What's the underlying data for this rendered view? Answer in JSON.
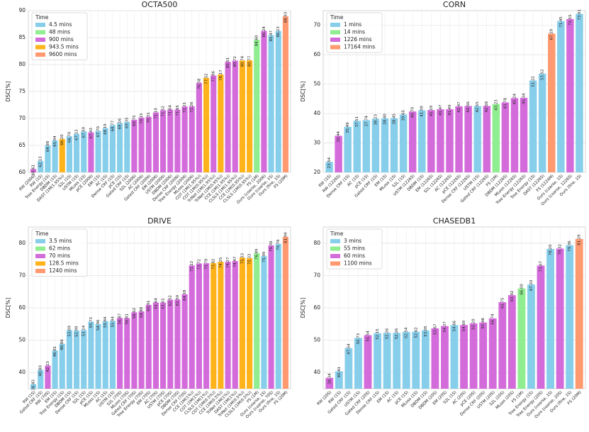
{
  "chart_data": [
    {
      "type": "bar",
      "title": "OCTA500",
      "y_label": "DSC[%]",
      "ylim": [
        60,
        90
      ],
      "yticks": [
        60,
        65,
        70,
        75,
        80,
        85,
        90
      ],
      "grid": true,
      "legend_position": "upper left",
      "legend_title": "Time",
      "legend": [
        {
          "name": "4.5 mins",
          "color": "#87ceeb"
        },
        {
          "name": "48 mins",
          "color": "#90ee90"
        },
        {
          "name": "900 mins",
          "color": "#d46bdb"
        },
        {
          "name": "943.5 mins",
          "color": "#ffb31a"
        },
        {
          "name": "9600 mins",
          "color": "#ff9970"
        }
      ],
      "categories": [
        "RW (2006)",
        "RW (1S)",
        "Tree Energy (1S)",
        "DBDM (1S)",
        "DAST (1M(1.95%))",
        "S2L (1S)",
        "USTM (1S)",
        "MLoss (1S)",
        "pCE (2006)",
        "EM (1S)",
        "AC (1S)",
        "Dense CRF (1S)",
        "pCE (1S)",
        "Gated CRF (1S)",
        "S2L (2006)",
        "AC (2006)",
        "Gated CRF (2006)",
        "EM (2006)",
        "USTM (2006)",
        "DBDM (2006)",
        "Dense CRF (2006)",
        "Tree Energy (2006)",
        "MLoss (2006)",
        "COT (1M(1.95%))",
        "COT (1M(0.95%))",
        "TriNet (1M(1.95%))",
        "TriNet (1M(0.95%))",
        "CCE (1M(1.95%))",
        "CLSLS (1M(1.95%))",
        "CCE (1M(0.95%))",
        "CLSLS (1M(0.95%))",
        "FS (1M)",
        "Ours (coarse, 2006)",
        "Ours (coarse, 1S)",
        "Ours (fine, 1S)",
        "FS (20M)"
      ],
      "values": [
        60.61,
        62.13,
        64.98,
        65.94,
        66.2,
        66.7,
        67.13,
        67.59,
        67.43,
        67.7,
        68.19,
        68.77,
        69.16,
        69.35,
        69.75,
        70.15,
        70.31,
        71.1,
        71.52,
        71.64,
        71.65,
        72.21,
        72.26,
        76.58,
        77.52,
        77.96,
        78.17,
        80.51,
        80.72,
        80.74,
        80.77,
        84.6,
        86.24,
        85.47,
        86.23,
        88.93
      ],
      "value_labels": [
        "60.61",
        "62.13",
        "64.98",
        "65.94",
        "66.20",
        "66.70",
        "67.13",
        "67.59",
        "67.43",
        "67.70",
        "68.19",
        "68.77",
        "69.16",
        "69.35",
        "69.75",
        "70.15",
        "70.31",
        "71.10",
        "71.52",
        "71.64",
        "71.65",
        "72.21",
        "72.26",
        "76.58",
        "77.52",
        "77.96",
        "78.17",
        "80.51",
        "80.72",
        "80.74",
        "80.77",
        "84.60",
        "86.24",
        "85.47",
        "86.23",
        "88.93"
      ],
      "colors": [
        "#d46bdb",
        "#87ceeb",
        "#87ceeb",
        "#87ceeb",
        "#ffb31a",
        "#87ceeb",
        "#87ceeb",
        "#87ceeb",
        "#d46bdb",
        "#87ceeb",
        "#87ceeb",
        "#87ceeb",
        "#87ceeb",
        "#87ceeb",
        "#d46bdb",
        "#d46bdb",
        "#d46bdb",
        "#d46bdb",
        "#d46bdb",
        "#d46bdb",
        "#d46bdb",
        "#d46bdb",
        "#d46bdb",
        "#d46bdb",
        "#ffb31a",
        "#d46bdb",
        "#ffb31a",
        "#d46bdb",
        "#d46bdb",
        "#ffb31a",
        "#ffb31a",
        "#90ee90",
        "#d46bdb",
        "#87ceeb",
        "#87ceeb",
        "#ff9970"
      ]
    },
    {
      "type": "bar",
      "title": "CORN",
      "y_label": "DSC[%]",
      "ylim": [
        20,
        75
      ],
      "yticks": [
        20,
        30,
        40,
        50,
        60,
        70
      ],
      "grid": true,
      "legend_position": "upper left",
      "legend_title": "Time",
      "legend": [
        {
          "name": "1 mins",
          "color": "#87ceeb"
        },
        {
          "name": "14 mins",
          "color": "#90ee90"
        },
        {
          "name": "1226 mins",
          "color": "#d46bdb"
        },
        {
          "name": "17164 mins",
          "color": "#ff9970"
        }
      ],
      "categories": [
        "RW (1S)",
        "RW (1226S)",
        "Dense CRF (1S)",
        "AC (1S)",
        "pCE (1S)",
        "Gated CRF (1S)",
        "EM (1S)",
        "MLoss (1S)",
        "S2L (1S)",
        "USTM (1226S)",
        "DBDM (1S)",
        "EM (1226S)",
        "S2L (1226S)",
        "AC (1226S)",
        "pCE (1226S)",
        "Dense CRF (1226S)",
        "USTM (1S)",
        "Gated CRF (1226S)",
        "FS (1M)",
        "DBDM (1226S)",
        "MLoss (1226S)",
        "Tree Energy (1226S)",
        "Tree Energy (1S)",
        "DAST (1226S)",
        "FS (1224M)",
        "Ours (coarse, 1S)",
        "Ours (coarse, 1226S)",
        "Ours (fine, 1S)"
      ],
      "values": [
        23.54,
        32.44,
        35.49,
        37.51,
        37.74,
        38.23,
        38.4,
        38.45,
        39.65,
        40.7,
        41.09,
        41.19,
        41.47,
        41.49,
        42.47,
        42.56,
        42.55,
        42.58,
        43.23,
        43.78,
        45.24,
        45.34,
        51.22,
        53.52,
        67.19,
        71.45,
        72.15,
        73.91
      ],
      "value_labels": [
        "23.54",
        "32.44",
        "35.49",
        "37.51",
        "37.74",
        "38.23",
        "38.40",
        "38.45",
        "39.65",
        "40.70",
        "41.09",
        "41.19",
        "41.47",
        "41.49",
        "42.47",
        "42.56",
        "42.55",
        "42.58",
        "43.23",
        "43.78",
        "45.24",
        "45.34",
        "51.22",
        "53.52",
        "67.19",
        "71.45",
        "72.15",
        "73.91"
      ],
      "colors": [
        "#87ceeb",
        "#d46bdb",
        "#87ceeb",
        "#87ceeb",
        "#87ceeb",
        "#87ceeb",
        "#87ceeb",
        "#87ceeb",
        "#87ceeb",
        "#d46bdb",
        "#87ceeb",
        "#d46bdb",
        "#d46bdb",
        "#d46bdb",
        "#d46bdb",
        "#d46bdb",
        "#87ceeb",
        "#d46bdb",
        "#90ee90",
        "#d46bdb",
        "#d46bdb",
        "#d46bdb",
        "#87ceeb",
        "#87ceeb",
        "#ff9970",
        "#87ceeb",
        "#d46bdb",
        "#87ceeb"
      ]
    },
    {
      "type": "bar",
      "title": "DRIVE",
      "y_label": "DSC[%]",
      "ylim": [
        35,
        85
      ],
      "yticks": [
        40,
        50,
        60,
        70,
        80
      ],
      "grid": true,
      "legend_position": "upper left",
      "legend_title": "Time",
      "legend": [
        {
          "name": "3.5 mins",
          "color": "#87ceeb"
        },
        {
          "name": "62 mins",
          "color": "#90ee90"
        },
        {
          "name": "70 mins",
          "color": "#d46bdb"
        },
        {
          "name": "128.5 mins",
          "color": "#ffb31a"
        },
        {
          "name": "1240 mins",
          "color": "#ff9970"
        }
      ],
      "categories": [
        "RW (1S)",
        "Gated CRF (1S)",
        "RW (70S)",
        "EM (1S)",
        "Tree Energy (1S)",
        "DBDM (1S)",
        "Dense CRF (1S)",
        "S2L (1S)",
        "pCE (1S)",
        "MLoss (1S)",
        "AC (1S)",
        "USTM (1S)",
        "S2L (70S)",
        "MLoss (70S)",
        "Gated CRF (70S)",
        "Tree Energy (70S)",
        "EM (70S)",
        "AC (70S)",
        "USTM (70S)",
        "pCE (70S)",
        "DBDM (70S)",
        "Dense CRF (70S)",
        "CCE (1M(1%))",
        "COT (1M(1%))",
        "CLSLS (1M(1%))",
        "COT (1M(0.5%))",
        "CCE (1M(0.5%))",
        "TriNet (1M(1%))",
        "DAST (1M(1%))",
        "TriNet (1M(0.5%))",
        "CLSLS (1M(0.5%))",
        "FS (1M)",
        "Ours (coarse, 1S)",
        "Ours (coarse, 70S)",
        "Ours (fine, 1S)",
        "FS (20M)"
      ],
      "values": [
        36.43,
        40.8,
        42.13,
        46.81,
        48.86,
        53.09,
        52.99,
        53.14,
        55.73,
        54.96,
        55.84,
        55.94,
        56.87,
        56.81,
        58.62,
        58.88,
        60.91,
        61.64,
        61.61,
        62.52,
        62.59,
        64.18,
        73.12,
        73.72,
        73.79,
        73.82,
        74.25,
        74.27,
        74.47,
        75.53,
        75.33,
        76.89,
        75.99,
        79.3,
        79.76,
        81.94
      ],
      "value_labels": [
        "36.43",
        "40.80",
        "42.13",
        "46.81",
        "48.86",
        "53.09",
        "52.99",
        "53.14",
        "55.73",
        "54.96",
        "55.84",
        "55.94",
        "56.87",
        "56.81",
        "58.62",
        "58.88",
        "60.91",
        "61.64",
        "61.61",
        "62.52",
        "62.59",
        "64.18",
        "73.12",
        "73.72",
        "73.79",
        "73.82",
        "74.25",
        "74.27",
        "74.47",
        "75.53",
        "75.33",
        "76.89",
        "75.99",
        "79.30",
        "79.76",
        "81.94"
      ],
      "colors": [
        "#87ceeb",
        "#87ceeb",
        "#d46bdb",
        "#87ceeb",
        "#87ceeb",
        "#87ceeb",
        "#87ceeb",
        "#87ceeb",
        "#87ceeb",
        "#87ceeb",
        "#87ceeb",
        "#87ceeb",
        "#d46bdb",
        "#d46bdb",
        "#d46bdb",
        "#d46bdb",
        "#d46bdb",
        "#d46bdb",
        "#d46bdb",
        "#d46bdb",
        "#d46bdb",
        "#d46bdb",
        "#d46bdb",
        "#d46bdb",
        "#d46bdb",
        "#ffb31a",
        "#ffb31a",
        "#d46bdb",
        "#d46bdb",
        "#ffb31a",
        "#ffb31a",
        "#90ee90",
        "#87ceeb",
        "#d46bdb",
        "#87ceeb",
        "#ff9970"
      ]
    },
    {
      "type": "bar",
      "title": "CHASEDB1",
      "y_label": "DSC[%]",
      "ylim": [
        35,
        85
      ],
      "yticks": [
        40,
        50,
        60,
        70,
        80
      ],
      "grid": true,
      "legend_position": "upper left",
      "legend_title": "Time",
      "legend": [
        {
          "name": "3 mins",
          "color": "#87ceeb"
        },
        {
          "name": "55 mins",
          "color": "#90ee90"
        },
        {
          "name": "60 mins",
          "color": "#d46bdb"
        },
        {
          "name": "1100 mins",
          "color": "#ff9970"
        }
      ],
      "categories": [
        "RW (20S)",
        "RW (1S)",
        "Gated CRF (1S)",
        "USTM (1S)",
        "Gated CRF (20S)",
        "Dense CRF (1S)",
        "EM (1S)",
        "AC (1S)",
        "pCE (1S)",
        "MLoss (1S)",
        "DBDM (1S)",
        "DBDM (20S)",
        "EM (20S)",
        "S2L (1S)",
        "AC (20S)",
        "pCE (20S)",
        "Dense CRF (20S)",
        "USTM (20S)",
        "S2L (20S)",
        "MLoss (20S)",
        "FS (1M)",
        "Tree Energy (1S)",
        "Tree Energy (20S)",
        "Ours (coarse, 1S)",
        "Ours (coarse, 20S)",
        "Ours (fine, 1S)",
        "FS (20M)"
      ],
      "values": [
        38.34,
        40.41,
        47.54,
        50.73,
        51.54,
        52.15,
        52.26,
        52.26,
        52.54,
        52.62,
        53.05,
        53.67,
        54.37,
        54.66,
        54.69,
        55.2,
        55.48,
        56.74,
        61.75,
        63.92,
        66.0,
        67.2,
        73.07,
        78.2,
        78.32,
        79.36,
        81.29
      ],
      "value_labels": [
        "38.34",
        "40.41",
        "47.54",
        "50.73",
        "51.54",
        "52.15",
        "52.26",
        "52.26",
        "52.54",
        "52.62",
        "53.05",
        "53.67",
        "54.37",
        "54.66",
        "54.69",
        "55.20",
        "55.48",
        "56.74",
        "61.75",
        "63.92",
        "66.00",
        "67.20",
        "73.07",
        "78.20",
        "78.32",
        "79.36",
        "81.29"
      ],
      "colors": [
        "#d46bdb",
        "#87ceeb",
        "#87ceeb",
        "#87ceeb",
        "#d46bdb",
        "#87ceeb",
        "#87ceeb",
        "#87ceeb",
        "#87ceeb",
        "#87ceeb",
        "#87ceeb",
        "#d46bdb",
        "#d46bdb",
        "#87ceeb",
        "#d46bdb",
        "#d46bdb",
        "#d46bdb",
        "#d46bdb",
        "#d46bdb",
        "#d46bdb",
        "#90ee90",
        "#87ceeb",
        "#d46bdb",
        "#87ceeb",
        "#d46bdb",
        "#87ceeb",
        "#ff9970"
      ]
    }
  ]
}
